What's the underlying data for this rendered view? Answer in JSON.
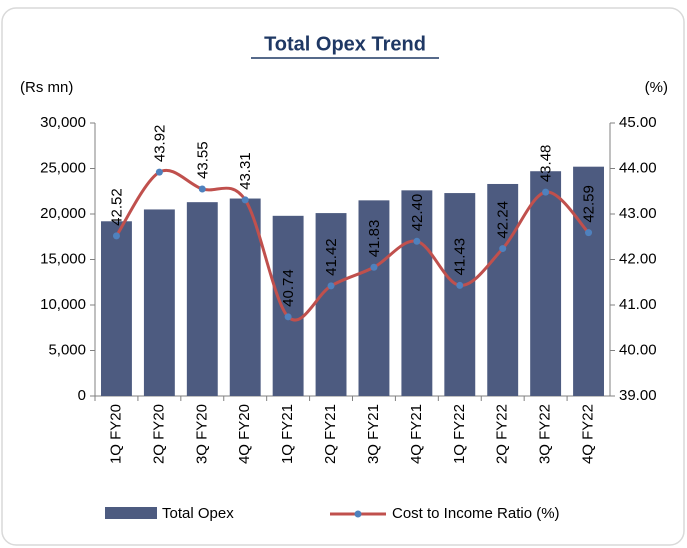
{
  "chart_data": {
    "type": "bar-line",
    "title": "Total Opex Trend",
    "y_label": "(Rs mn)",
    "y2_label": "(%)",
    "categories": [
      "1Q FY20",
      "2Q FY20",
      "3Q FY20",
      "4Q FY20",
      "1Q FY21",
      "2Q FY21",
      "3Q FY21",
      "4Q FY21",
      "1Q FY22",
      "2Q FY22",
      "3Q FY22",
      "4Q FY22"
    ],
    "series": [
      {
        "name": "Total Opex",
        "type": "bar",
        "color": "#4d5b80",
        "values": [
          19200,
          20500,
          21300,
          21700,
          19800,
          20100,
          21500,
          22600,
          22300,
          23300,
          24700,
          25200
        ]
      },
      {
        "name": "Cost to Income Ratio (%)",
        "type": "line",
        "axis": "y2",
        "color": "#c0504d",
        "marker_color": "#4f81bd",
        "values": [
          42.52,
          43.92,
          43.55,
          43.31,
          40.74,
          41.42,
          41.83,
          42.4,
          41.43,
          42.24,
          43.48,
          42.59
        ],
        "value_labels": [
          "42.52",
          "43.92",
          "43.55",
          "43.31",
          "40.74",
          "41.42",
          "41.83",
          "42.40",
          "41.43",
          "42.24",
          "43.48",
          "42.59"
        ]
      }
    ],
    "ylim": [
      0,
      30000
    ],
    "yticks": [
      0,
      {
        "value": 5000,
        "label": "5,000"
      },
      {
        "value": 10000,
        "label": "10,000"
      },
      {
        "value": 15000,
        "label": "15,000"
      },
      {
        "value": 20000,
        "label": "20,000"
      },
      {
        "value": 25000,
        "label": "25,000"
      },
      {
        "value": 30000,
        "label": "30,000"
      }
    ],
    "y2lim": [
      39,
      45
    ],
    "y2ticks": [
      {
        "value": 39,
        "label": "39.00"
      },
      {
        "value": 40,
        "label": "40.00"
      },
      {
        "value": 41,
        "label": "41.00"
      },
      {
        "value": 42,
        "label": "42.00"
      },
      {
        "value": 43,
        "label": "43.00"
      },
      {
        "value": 44,
        "label": "44.00"
      },
      {
        "value": 45,
        "label": "45.00"
      }
    ],
    "grid": false
  }
}
